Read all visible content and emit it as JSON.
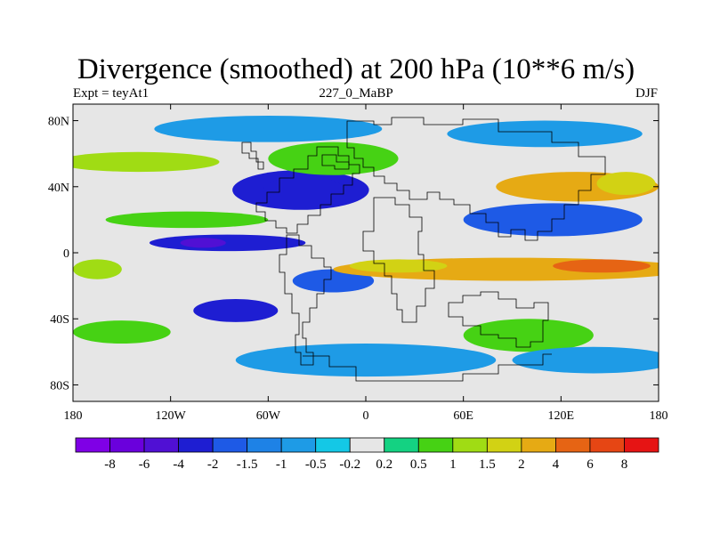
{
  "title": "Divergence (smoothed) at 200 hPa (10**6 m/s)",
  "left_string": "Expt = teyAt1",
  "center_string": "227_0_MaBP",
  "right_string": "DJF",
  "axes": {
    "x_ticks": [
      {
        "value": -180,
        "label": "180"
      },
      {
        "value": -120,
        "label": "120W"
      },
      {
        "value": -60,
        "label": "60W"
      },
      {
        "value": 0,
        "label": "0"
      },
      {
        "value": 60,
        "label": "60E"
      },
      {
        "value": 120,
        "label": "120E"
      },
      {
        "value": 180,
        "label": "180"
      }
    ],
    "y_ticks": [
      {
        "value": 80,
        "label": "80N"
      },
      {
        "value": 40,
        "label": "40N"
      },
      {
        "value": 0,
        "label": "0"
      },
      {
        "value": -40,
        "label": "40S"
      },
      {
        "value": -80,
        "label": "80S"
      }
    ],
    "lon_range": [
      -180,
      180
    ],
    "lat_range": [
      -90,
      90
    ]
  },
  "colorbar": {
    "colors": [
      "#7f00e6",
      "#6a00dc",
      "#5010d4",
      "#1e1ed2",
      "#1e5ae6",
      "#1e82e6",
      "#1e9be6",
      "#14c8e6",
      "#e6e6e6",
      "#14d282",
      "#46d214",
      "#a0dc14",
      "#d2d214",
      "#e6aa14",
      "#e66414",
      "#e64614",
      "#e61414"
    ],
    "labels": [
      "-8",
      "-6",
      "-4",
      "-2",
      "-1.5",
      "-1",
      "-0.5",
      "-0.2",
      "0.2",
      "0.5",
      "1",
      "1.5",
      "2",
      "4",
      "6",
      "8"
    ]
  },
  "chart_data": {
    "type": "heatmap",
    "variable": "Divergence (smoothed) at 200 hPa",
    "units": "10**6 m/s",
    "levels": [
      -8,
      -6,
      -4,
      -2,
      -1.5,
      -1,
      -0.5,
      -0.2,
      0.2,
      0.5,
      1,
      1.5,
      2,
      4,
      6,
      8
    ],
    "features": [
      {
        "name": "cluster-nam-conv",
        "lon": -40,
        "lat": 38,
        "w": 42,
        "h": 12,
        "value": -2.5
      },
      {
        "name": "cluster-nam-conv-core",
        "lon": -38,
        "lat": 38,
        "w": 25,
        "h": 8,
        "value": -3.2
      },
      {
        "name": "cluster-trop-pac-conv",
        "lon": -85,
        "lat": 6,
        "w": 48,
        "h": 5,
        "value": -2.4
      },
      {
        "name": "cluster-trop-pac-core",
        "lon": -100,
        "lat": 6,
        "w": 14,
        "h": 3,
        "value": -4.5
      },
      {
        "name": "cluster-sh-conv",
        "lon": -80,
        "lat": -35,
        "w": 26,
        "h": 7,
        "value": -2.4
      },
      {
        "name": "cluster-atl-conv",
        "lon": -20,
        "lat": -17,
        "w": 25,
        "h": 7,
        "value": -1.6
      },
      {
        "name": "cluster-asia-conv",
        "lon": 115,
        "lat": 20,
        "w": 55,
        "h": 10,
        "value": -1.6
      },
      {
        "name": "cluster-eq-div",
        "lon": 90,
        "lat": -10,
        "w": 110,
        "h": 7,
        "value": 2.5
      },
      {
        "name": "cluster-eq-div-core",
        "lon": 145,
        "lat": -8,
        "w": 30,
        "h": 4,
        "value": 4.5
      },
      {
        "name": "cluster-atl-div",
        "lon": 20,
        "lat": -8,
        "w": 30,
        "h": 4,
        "value": 1.8
      },
      {
        "name": "cluster-westpac-div",
        "lon": -165,
        "lat": -10,
        "w": 15,
        "h": 6,
        "value": 1.2
      },
      {
        "name": "cluster-asia-div",
        "lon": 130,
        "lat": 40,
        "w": 50,
        "h": 9,
        "value": 2.3
      },
      {
        "name": "cluster-asia-div-east",
        "lon": 160,
        "lat": 42,
        "w": 18,
        "h": 7,
        "value": 1.7
      },
      {
        "name": "cluster-nh-div",
        "lon": -20,
        "lat": 57,
        "w": 40,
        "h": 10,
        "value": 0.7
      },
      {
        "name": "cluster-nh-band",
        "lon": -140,
        "lat": 55,
        "w": 50,
        "h": 6,
        "value": 1.1
      },
      {
        "name": "cluster-subtrop-div",
        "lon": -110,
        "lat": 20,
        "w": 50,
        "h": 5,
        "value": 0.7
      },
      {
        "name": "cluster-sh-div",
        "lon": 100,
        "lat": -50,
        "w": 40,
        "h": 10,
        "value": 0.9
      },
      {
        "name": "cluster-sh-div-west",
        "lon": -150,
        "lat": -48,
        "w": 30,
        "h": 7,
        "value": 0.7
      },
      {
        "name": "cluster-north-conv",
        "lon": -60,
        "lat": 75,
        "w": 70,
        "h": 8,
        "value": -0.6
      },
      {
        "name": "cluster-north-conv-east",
        "lon": 110,
        "lat": 72,
        "w": 60,
        "h": 8,
        "value": -0.6
      },
      {
        "name": "cluster-south-conv",
        "lon": 0,
        "lat": -65,
        "w": 80,
        "h": 10,
        "value": -0.7
      },
      {
        "name": "cluster-south-conv-east",
        "lon": 140,
        "lat": -65,
        "w": 50,
        "h": 8,
        "value": -0.6
      }
    ]
  }
}
